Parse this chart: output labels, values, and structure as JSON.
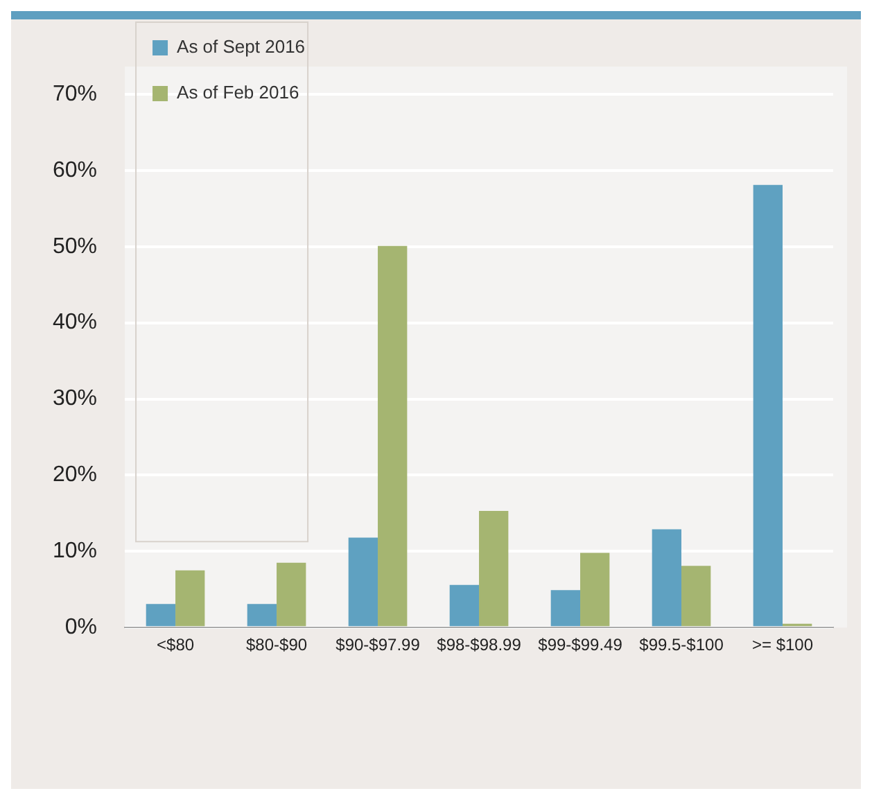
{
  "chart_data": {
    "type": "bar",
    "categories": [
      "<$80",
      "$80-$90",
      "$90-$97.99",
      "$98-$98.99",
      "$99-$99.49",
      "$99.5-$100",
      ">= $100"
    ],
    "series": [
      {
        "name": "As of Sept 2016",
        "color": "#5fa1c1",
        "values": [
          3.1,
          3.1,
          11.8,
          5.6,
          4.9,
          12.9,
          58.1
        ]
      },
      {
        "name": "As of Feb 2016",
        "color": "#a5b571",
        "values": [
          7.5,
          8.5,
          50.1,
          15.3,
          9.8,
          8.1,
          0.5
        ]
      }
    ],
    "ylim": [
      0,
      70
    ],
    "yticks": [
      {
        "value": 0,
        "label": "0%"
      },
      {
        "value": 10,
        "label": "10%"
      },
      {
        "value": 20,
        "label": "20%"
      },
      {
        "value": 30,
        "label": "30%"
      },
      {
        "value": 40,
        "label": "40%"
      },
      {
        "value": 50,
        "label": "50%"
      },
      {
        "value": 60,
        "label": "60%"
      },
      {
        "value": 70,
        "label": "70%"
      }
    ],
    "grid": "y",
    "legend": "top left"
  }
}
